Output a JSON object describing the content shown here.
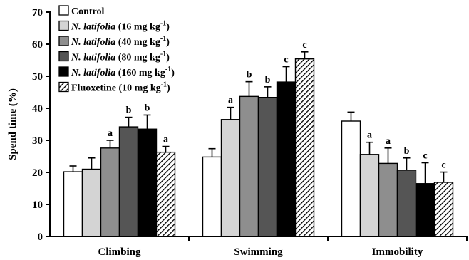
{
  "chart_data": {
    "type": "bar",
    "ylabel": "Spend time (%)",
    "ylim": [
      0,
      70
    ],
    "yticks": [
      0,
      10,
      20,
      30,
      40,
      50,
      60,
      70
    ],
    "categories": [
      "Climbing",
      "Swimming",
      "Immobility"
    ],
    "legend_position": "top-left",
    "series": [
      {
        "name": "Control",
        "fill": "#ffffff",
        "pattern": "none",
        "values": [
          20.2,
          24.8,
          36.0
        ],
        "errors": [
          1.8,
          2.6,
          2.8
        ],
        "labels": [
          "",
          "",
          ""
        ]
      },
      {
        "name_parts": [
          "N. latifolia",
          " (16 mg kg",
          "-1",
          ")"
        ],
        "fill": "#d4d4d4",
        "pattern": "none",
        "values": [
          21.0,
          36.5,
          25.6
        ],
        "errors": [
          3.5,
          3.8,
          3.8
        ],
        "labels": [
          "",
          "a",
          "a"
        ]
      },
      {
        "name_parts": [
          "N. latifolia",
          " (40 mg kg",
          "-1",
          ")"
        ],
        "fill": "#8e8e8e",
        "pattern": "none",
        "values": [
          27.6,
          43.7,
          22.8
        ],
        "errors": [
          2.4,
          4.6,
          4.8
        ],
        "labels": [
          "a",
          "b",
          "a"
        ]
      },
      {
        "name_parts": [
          "N. latifolia",
          " (80 mg kg",
          "-1",
          ")"
        ],
        "fill": "#555555",
        "pattern": "none",
        "values": [
          34.2,
          43.4,
          20.7
        ],
        "errors": [
          3.0,
          3.3,
          3.8
        ],
        "labels": [
          "b",
          "b",
          "b"
        ]
      },
      {
        "name_parts": [
          "N. latifolia",
          " (160 mg kg",
          "-1",
          ")"
        ],
        "fill": "#000000",
        "pattern": "none",
        "values": [
          33.5,
          48.2,
          16.5
        ],
        "errors": [
          4.4,
          4.8,
          6.5
        ],
        "labels": [
          "b",
          "c",
          "c"
        ]
      },
      {
        "name_parts": [
          "Fluoxetine",
          " (10 mg kg",
          "-1",
          ")"
        ],
        "fill": "#ffffff",
        "pattern": "hatch",
        "values": [
          26.3,
          55.4,
          16.9
        ],
        "errors": [
          1.8,
          2.2,
          3.2
        ],
        "labels": [
          "a",
          "c",
          "c"
        ]
      }
    ]
  }
}
